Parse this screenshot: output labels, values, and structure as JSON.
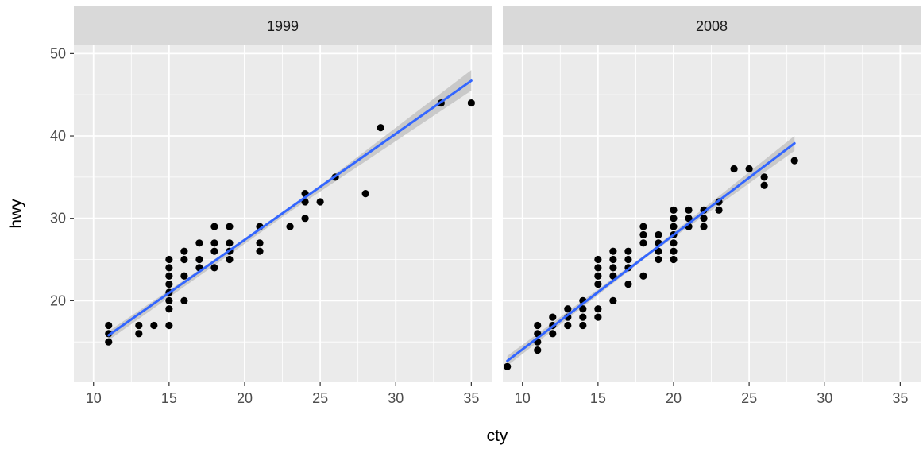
{
  "chart_data": {
    "type": "scatter",
    "xlabel": "cty",
    "ylabel": "hwy",
    "xlim": [
      8.7,
      36.4
    ],
    "ylim": [
      10.1,
      51.0
    ],
    "x_ticks": [
      10,
      15,
      20,
      25,
      30,
      35
    ],
    "y_ticks": [
      20,
      30,
      40,
      50
    ],
    "grid": true,
    "smooth": "linear fit with confidence band",
    "colors": {
      "panel_background": "#ebebeb",
      "strip_background": "#d9d9d9",
      "grid": "#ffffff",
      "points": "#000000",
      "fit_line": "#3366ff",
      "confidence_band": "#bdbdbd"
    },
    "panels": [
      {
        "strip": "1999",
        "points": [
          [
            11,
            15
          ],
          [
            11,
            16
          ],
          [
            11,
            17
          ],
          [
            13,
            16
          ],
          [
            13,
            17
          ],
          [
            14,
            17
          ],
          [
            15,
            17
          ],
          [
            15,
            19
          ],
          [
            15,
            20
          ],
          [
            15,
            21
          ],
          [
            15,
            22
          ],
          [
            15,
            23
          ],
          [
            15,
            24
          ],
          [
            15,
            25
          ],
          [
            16,
            20
          ],
          [
            16,
            23
          ],
          [
            16,
            25
          ],
          [
            16,
            26
          ],
          [
            17,
            24
          ],
          [
            17,
            25
          ],
          [
            17,
            27
          ],
          [
            18,
            24
          ],
          [
            18,
            26
          ],
          [
            18,
            27
          ],
          [
            18,
            29
          ],
          [
            19,
            25
          ],
          [
            19,
            26
          ],
          [
            19,
            27
          ],
          [
            19,
            29
          ],
          [
            21,
            26
          ],
          [
            21,
            27
          ],
          [
            21,
            29
          ],
          [
            23,
            29
          ],
          [
            24,
            30
          ],
          [
            24,
            32
          ],
          [
            24,
            33
          ],
          [
            25,
            32
          ],
          [
            26,
            35
          ],
          [
            28,
            33
          ],
          [
            29,
            41
          ],
          [
            33,
            44
          ],
          [
            35,
            44
          ]
        ],
        "fit": {
          "x": [
            11,
            35
          ],
          "y": [
            15.8,
            46.7
          ]
        },
        "band": {
          "x": [
            11,
            23,
            35
          ],
          "upper": [
            16.3,
            31.2,
            48.0
          ],
          "lower": [
            15.2,
            30.8,
            45.5
          ]
        }
      },
      {
        "strip": "2008",
        "points": [
          [
            9,
            12
          ],
          [
            11,
            14
          ],
          [
            11,
            15
          ],
          [
            11,
            16
          ],
          [
            11,
            17
          ],
          [
            12,
            16
          ],
          [
            12,
            17
          ],
          [
            12,
            18
          ],
          [
            13,
            17
          ],
          [
            13,
            18
          ],
          [
            13,
            19
          ],
          [
            14,
            17
          ],
          [
            14,
            18
          ],
          [
            14,
            19
          ],
          [
            14,
            20
          ],
          [
            15,
            18
          ],
          [
            15,
            19
          ],
          [
            15,
            22
          ],
          [
            15,
            23
          ],
          [
            15,
            24
          ],
          [
            15,
            25
          ],
          [
            16,
            20
          ],
          [
            16,
            23
          ],
          [
            16,
            24
          ],
          [
            16,
            25
          ],
          [
            16,
            26
          ],
          [
            17,
            22
          ],
          [
            17,
            24
          ],
          [
            17,
            25
          ],
          [
            17,
            26
          ],
          [
            18,
            23
          ],
          [
            18,
            27
          ],
          [
            18,
            28
          ],
          [
            18,
            29
          ],
          [
            19,
            25
          ],
          [
            19,
            26
          ],
          [
            19,
            27
          ],
          [
            19,
            28
          ],
          [
            20,
            25
          ],
          [
            20,
            26
          ],
          [
            20,
            27
          ],
          [
            20,
            28
          ],
          [
            20,
            29
          ],
          [
            20,
            30
          ],
          [
            20,
            31
          ],
          [
            21,
            29
          ],
          [
            21,
            30
          ],
          [
            21,
            31
          ],
          [
            22,
            29
          ],
          [
            22,
            30
          ],
          [
            22,
            31
          ],
          [
            23,
            31
          ],
          [
            23,
            32
          ],
          [
            24,
            36
          ],
          [
            25,
            36
          ],
          [
            26,
            34
          ],
          [
            26,
            35
          ],
          [
            28,
            37
          ]
        ],
        "fit": {
          "x": [
            9,
            28
          ],
          "y": [
            12.7,
            39.1
          ]
        },
        "band": {
          "x": [
            9,
            18.5,
            28
          ],
          "upper": [
            13.3,
            26.1,
            40.0
          ],
          "lower": [
            12.1,
            25.7,
            38.2
          ]
        }
      }
    ]
  }
}
